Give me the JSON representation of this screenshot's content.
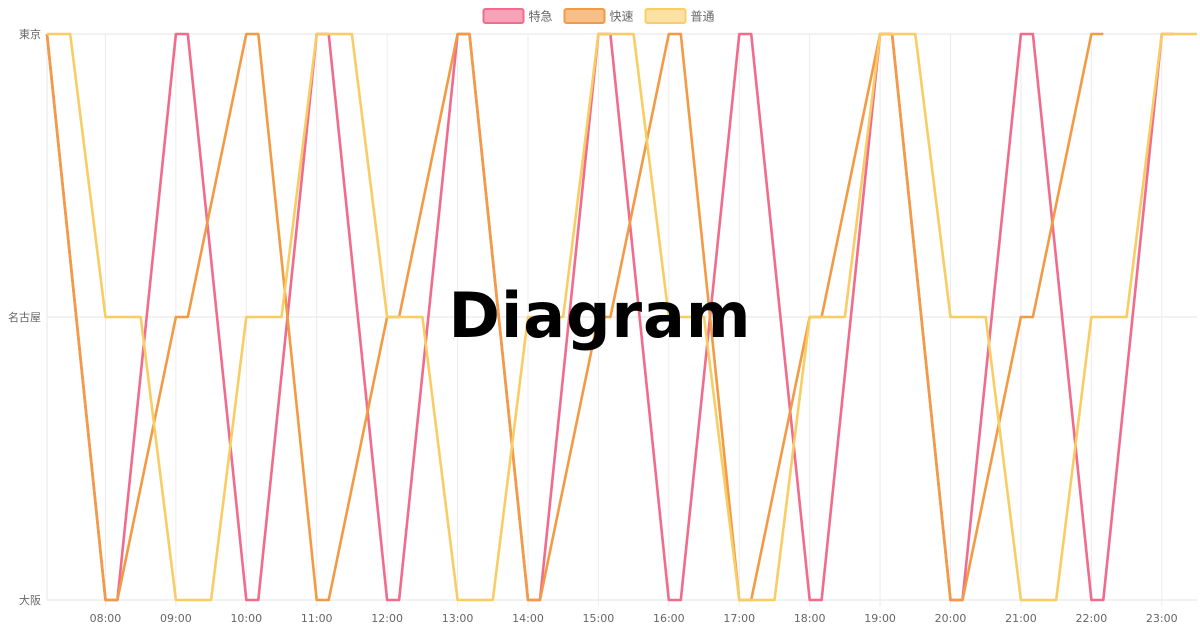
{
  "overlay": {
    "text": "Diagram"
  },
  "chart_data": {
    "type": "line",
    "title": "",
    "xlabel": "",
    "ylabel": "",
    "x_unit": "hours (time of day)",
    "xlim": [
      7.17,
      23.5
    ],
    "x_ticks": [
      "08:00",
      "09:00",
      "10:00",
      "11:00",
      "12:00",
      "13:00",
      "14:00",
      "15:00",
      "16:00",
      "17:00",
      "18:00",
      "19:00",
      "20:00",
      "21:00",
      "22:00",
      "23:00"
    ],
    "y_categories": [
      "大阪",
      "名古屋",
      "東京"
    ],
    "grid": true,
    "legend_position": "top-center",
    "series": [
      {
        "name": "特急",
        "color": "#f06b8c",
        "fill": "#f7a3b7",
        "points": [
          [
            7.17,
            2
          ],
          [
            8.0,
            0
          ],
          [
            8.17,
            0
          ],
          [
            9.0,
            2
          ],
          [
            9.17,
            2
          ],
          [
            10.0,
            0
          ],
          [
            10.17,
            0
          ],
          [
            11.0,
            2
          ],
          [
            11.17,
            2
          ],
          [
            12.0,
            0
          ],
          [
            12.17,
            0
          ],
          [
            13.0,
            2
          ],
          [
            13.17,
            2
          ],
          [
            14.0,
            0
          ],
          [
            14.17,
            0
          ],
          [
            15.0,
            2
          ],
          [
            15.17,
            2
          ],
          [
            16.0,
            0
          ],
          [
            16.17,
            0
          ],
          [
            17.0,
            2
          ],
          [
            17.17,
            2
          ],
          [
            18.0,
            0
          ],
          [
            18.17,
            0
          ],
          [
            19.0,
            2
          ],
          [
            19.17,
            2
          ],
          [
            20.0,
            0
          ],
          [
            20.17,
            0
          ],
          [
            21.0,
            2
          ],
          [
            21.17,
            2
          ],
          [
            22.0,
            0
          ],
          [
            22.17,
            0
          ],
          [
            23.0,
            2
          ],
          [
            23.17,
            2
          ]
        ]
      },
      {
        "name": "快速",
        "color": "#f39a44",
        "fill": "#f8bf88",
        "points": [
          [
            7.17,
            2
          ],
          [
            8.0,
            0
          ],
          [
            8.17,
            0
          ],
          [
            9.0,
            1
          ],
          [
            9.17,
            1
          ],
          [
            10.0,
            2
          ],
          [
            10.17,
            2
          ],
          [
            11.0,
            0
          ],
          [
            11.17,
            0
          ],
          [
            12.0,
            1
          ],
          [
            12.17,
            1
          ],
          [
            13.0,
            2
          ],
          [
            13.17,
            2
          ],
          [
            14.0,
            0
          ],
          [
            14.17,
            0
          ],
          [
            15.0,
            1
          ],
          [
            15.17,
            1
          ],
          [
            16.0,
            2
          ],
          [
            16.17,
            2
          ],
          [
            17.0,
            0
          ],
          [
            17.17,
            0
          ],
          [
            18.0,
            1
          ],
          [
            18.17,
            1
          ],
          [
            19.0,
            2
          ],
          [
            19.17,
            2
          ],
          [
            20.0,
            0
          ],
          [
            20.17,
            0
          ],
          [
            21.0,
            1
          ],
          [
            21.17,
            1
          ],
          [
            22.0,
            2
          ],
          [
            22.17,
            2
          ]
        ]
      },
      {
        "name": "普通",
        "color": "#f8cd63",
        "fill": "#fbe2a4",
        "points": [
          [
            7.17,
            2
          ],
          [
            7.5,
            2
          ],
          [
            8.0,
            1
          ],
          [
            8.5,
            1
          ],
          [
            9.0,
            0
          ],
          [
            9.5,
            0
          ],
          [
            10.0,
            1
          ],
          [
            10.5,
            1
          ],
          [
            11.0,
            2
          ],
          [
            11.5,
            2
          ],
          [
            12.0,
            1
          ],
          [
            12.5,
            1
          ],
          [
            13.0,
            0
          ],
          [
            13.5,
            0
          ],
          [
            14.0,
            1
          ],
          [
            14.5,
            1
          ],
          [
            15.0,
            2
          ],
          [
            15.5,
            2
          ],
          [
            16.0,
            1
          ],
          [
            16.5,
            1
          ],
          [
            17.0,
            0
          ],
          [
            17.5,
            0
          ],
          [
            18.0,
            1
          ],
          [
            18.5,
            1
          ],
          [
            19.0,
            2
          ],
          [
            19.5,
            2
          ],
          [
            20.0,
            1
          ],
          [
            20.5,
            1
          ],
          [
            21.0,
            0
          ],
          [
            21.5,
            0
          ],
          [
            22.0,
            1
          ],
          [
            22.5,
            1
          ],
          [
            23.0,
            2
          ],
          [
            23.5,
            2
          ]
        ]
      }
    ]
  }
}
